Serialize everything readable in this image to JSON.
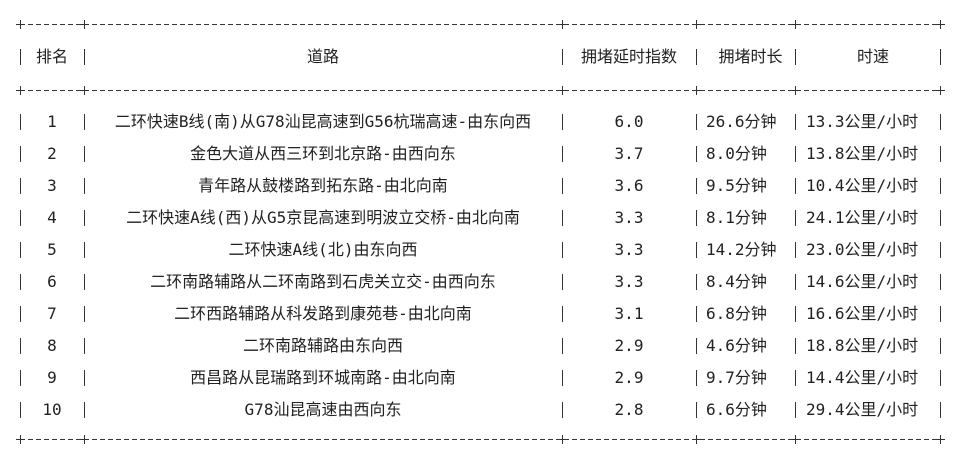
{
  "table": {
    "headers": [
      "排名",
      "道路",
      "拥堵延时指数",
      "拥堵时长",
      "时速"
    ],
    "rows": [
      [
        "1",
        "二环快速B线(南)从G78汕昆高速到G56杭瑞高速-由东向西",
        "6.0",
        "26.6分钟",
        "13.3公里/小时"
      ],
      [
        "2",
        "金色大道从西三环到北京路-由西向东",
        "3.7",
        "8.0分钟",
        "13.8公里/小时"
      ],
      [
        "3",
        "青年路从鼓楼路到拓东路-由北向南",
        "3.6",
        "9.5分钟",
        "10.4公里/小时"
      ],
      [
        "4",
        "二环快速A线(西)从G5京昆高速到明波立交桥-由北向南",
        "3.3",
        "8.1分钟",
        "24.1公里/小时"
      ],
      [
        "5",
        "二环快速A线(北)由东向西",
        "3.3",
        "14.2分钟",
        "23.0公里/小时"
      ],
      [
        "6",
        "二环南路辅路从二环南路到石虎关立交-由西向东",
        "3.3",
        "8.4分钟",
        "14.6公里/小时"
      ],
      [
        "7",
        "二环西路辅路从科发路到康苑巷-由北向南",
        "3.1",
        "6.8分钟",
        "16.6公里/小时"
      ],
      [
        "8",
        "二环南路辅路由东向西",
        "2.9",
        "4.6分钟",
        "18.8公里/小时"
      ],
      [
        "9",
        "西昌路从昆瑞路到环城南路-由北向南",
        "2.9",
        "9.7分钟",
        "14.4公里/小时"
      ],
      [
        "10",
        "G78汕昆高速由西向东",
        "2.8",
        "6.6分钟",
        "29.4公里/小时"
      ]
    ]
  }
}
